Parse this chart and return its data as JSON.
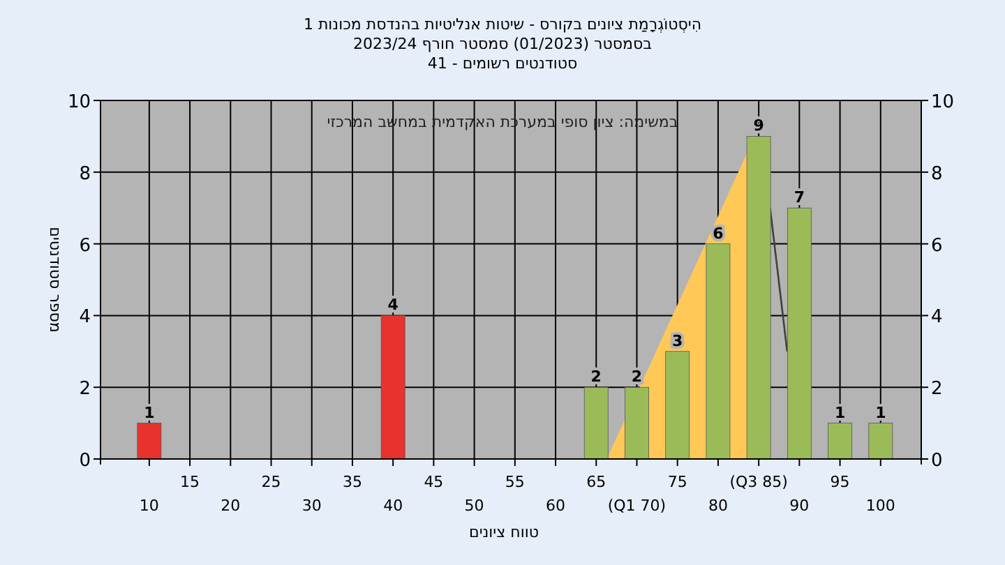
{
  "chart_data": {
    "type": "bar",
    "title": "הִיסְטוֹגְרָמַת ציונים בקורס - שיטות אנליטיות בהנדסת מכונות 1",
    "subtitle": "בסמסטר (01/2023) סמסטר חורף 2023/24",
    "annotations": [
      "סטודנטים רשומים - 41",
      "במשימה: ציון סופי במערכת האקדמית במחשב המרכזי"
    ],
    "xlabel": "טווח ציונים",
    "ylabel": "מספר סטודנטים",
    "xlim": [
      4,
      105
    ],
    "x2lim": [
      4,
      105
    ],
    "ylim": [
      0,
      10
    ],
    "y2lim": [
      0,
      10
    ],
    "xticks": [
      10,
      20,
      30,
      40,
      50,
      60,
      {
        "value": 70,
        "label": "(Q1 70)"
      },
      80,
      90,
      100
    ],
    "x2ticks": [
      15,
      25,
      35,
      45,
      55,
      65,
      75,
      {
        "value": 85,
        "label": "(Q3 85)"
      },
      95
    ],
    "yticks": [
      0,
      2,
      4,
      6,
      8,
      10
    ],
    "y2ticks": [
      0,
      2,
      4,
      6,
      8,
      10
    ],
    "grid": true,
    "series": [
      {
        "type": "area",
        "color": "#ffc857",
        "x": [
          66.3,
          84.5,
          84.5
        ],
        "values": [
          0,
          9,
          0
        ]
      },
      {
        "type": "line",
        "color": "#404040",
        "x": [
          86.4,
          88.5
        ],
        "values": [
          7,
          3
        ]
      },
      {
        "x": [
          10,
          40,
          65,
          70,
          75,
          80,
          85,
          90,
          95,
          100
        ],
        "values": [
          1,
          4,
          2,
          2,
          3,
          6,
          9,
          7,
          1,
          1
        ],
        "value_labels": [
          "1",
          "4",
          "2",
          "2",
          "3",
          "6",
          "9",
          "7",
          "1",
          "1"
        ],
        "colors": [
          "#e8322d",
          "#e8322d",
          "#9bbb59",
          "#9bbb59",
          "#9bbb59",
          "#9bbb59",
          "#9bbb59",
          "#9bbb59",
          "#9bbb59",
          "#9bbb59"
        ]
      }
    ]
  }
}
